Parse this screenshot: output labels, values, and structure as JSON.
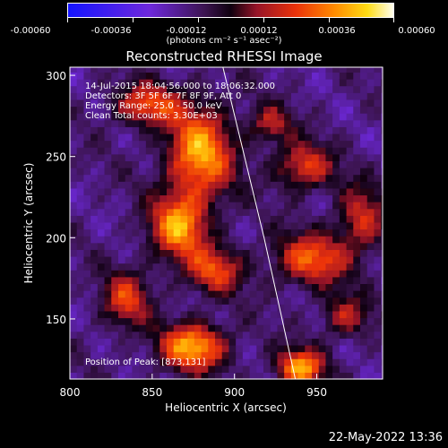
{
  "colorbar": {
    "ticks": [
      "-0.00060",
      "-0.00036",
      "-0.00012",
      "0.00012",
      "0.00036",
      "0.00060"
    ],
    "units": "(photons cm⁻² s⁻¹ asec⁻²)"
  },
  "chart_data": {
    "type": "heatmap",
    "title": "Reconstructed RHESSI Image",
    "xlabel": "Heliocentric X (arcsec)",
    "ylabel": "Heliocentric Y (arcsec)",
    "xlim": [
      800,
      990
    ],
    "ylim": [
      113,
      305
    ],
    "x_ticks": [
      "800",
      "850",
      "900",
      "950"
    ],
    "y_ticks": [
      "150",
      "200",
      "250",
      "300"
    ],
    "x_tick_values": [
      800,
      850,
      900,
      950
    ],
    "y_tick_values": [
      150,
      200,
      250,
      300
    ],
    "colorbar_range": [
      -0.0006,
      0.0006
    ],
    "annotations": [
      "14-Jul-2015 18:04:56.000 to 18:06:32.000",
      "Detectors: 3F 5F 6F 7F 8F 9F, Att 0",
      "Energy Range: 25.0 - 50.0 keV",
      "Clean     Total counts: 3.30E+03"
    ],
    "peak_label": "Position of Peak: [873,131]",
    "limb_line": [
      [
        893,
        305
      ],
      [
        918,
        200
      ],
      [
        937,
        113
      ]
    ],
    "sources": [
      {
        "x": 877,
        "y": 250,
        "amplitude": 0.00058,
        "sigma": [
          14,
          20
        ]
      },
      {
        "x": 864,
        "y": 205,
        "amplitude": 0.00055,
        "sigma": [
          12,
          14
        ]
      },
      {
        "x": 845,
        "y": 280,
        "amplitude": 0.00042,
        "sigma": [
          14,
          9
        ]
      },
      {
        "x": 886,
        "y": 178,
        "amplitude": 0.0004,
        "sigma": [
          12,
          10
        ]
      },
      {
        "x": 873,
        "y": 131,
        "amplitude": 0.0006,
        "sigma": [
          14,
          10
        ]
      },
      {
        "x": 832,
        "y": 160,
        "amplitude": 0.00038,
        "sigma": [
          10,
          12
        ]
      },
      {
        "x": 938,
        "y": 118,
        "amplitude": 0.00058,
        "sigma": [
          10,
          8
        ]
      },
      {
        "x": 945,
        "y": 185,
        "amplitude": 0.00045,
        "sigma": [
          16,
          11
        ]
      },
      {
        "x": 940,
        "y": 242,
        "amplitude": 0.0004,
        "sigma": [
          12,
          10
        ]
      },
      {
        "x": 975,
        "y": 210,
        "amplitude": 0.00035,
        "sigma": [
          10,
          14
        ]
      },
      {
        "x": 920,
        "y": 268,
        "amplitude": 0.0003,
        "sigma": [
          9,
          8
        ]
      },
      {
        "x": 965,
        "y": 150,
        "amplitude": 0.0003,
        "sigma": [
          10,
          9
        ]
      }
    ]
  },
  "footer": {
    "date": "22-May-2022 13:36"
  }
}
